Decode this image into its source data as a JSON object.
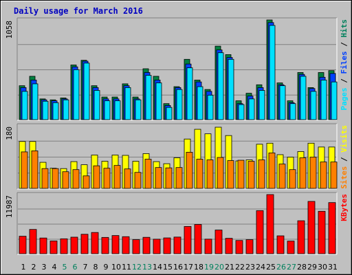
{
  "title": "Daily usage for March 2016",
  "colors": {
    "background": "#c0c0c0",
    "panel": "#c0c0c0",
    "hits": "#008040",
    "files": "#0040ff",
    "pages": "#00e0ff",
    "visits": "#ffff00",
    "sites": "#ff8000",
    "kbytes": "#ff0000",
    "weekday_label": "#000000",
    "weekend_label": "#00805c"
  },
  "chart_data": [
    {
      "type": "bar",
      "panel": "top",
      "ymax_label": "1058",
      "ylim": [
        0,
        1058
      ],
      "right_label": [
        "Pages",
        "Files",
        "Hits"
      ],
      "categories": [
        "1",
        "2",
        "3",
        "4",
        "5",
        "6",
        "7",
        "8",
        "9",
        "10",
        "11",
        "12",
        "13",
        "14",
        "15",
        "16",
        "17",
        "18",
        "19",
        "20",
        "21",
        "22",
        "23",
        "24",
        "25",
        "26",
        "27",
        "28",
        "29",
        "30",
        "31"
      ],
      "weekend": [
        "5",
        "6",
        "12",
        "13",
        "19",
        "20",
        "26",
        "27"
      ],
      "series": [
        {
          "name": "Hits",
          "values": [
            360,
            460,
            220,
            210,
            230,
            580,
            630,
            360,
            240,
            240,
            380,
            240,
            540,
            460,
            170,
            350,
            640,
            420,
            320,
            780,
            690,
            200,
            280,
            370,
            1058,
            390,
            200,
            500,
            340,
            500,
            520
          ]
        },
        {
          "name": "Files",
          "values": [
            340,
            420,
            210,
            200,
            220,
            560,
            620,
            340,
            220,
            220,
            360,
            220,
            500,
            420,
            150,
            340,
            590,
            400,
            300,
            740,
            660,
            170,
            250,
            340,
            1030,
            370,
            180,
            480,
            330,
            450,
            490
          ]
        },
        {
          "name": "Pages",
          "values": [
            300,
            380,
            195,
            180,
            210,
            530,
            600,
            310,
            200,
            200,
            340,
            210,
            470,
            390,
            130,
            320,
            550,
            350,
            260,
            710,
            640,
            160,
            220,
            310,
            1000,
            360,
            170,
            460,
            300,
            420,
            400
          ]
        }
      ]
    },
    {
      "type": "bar",
      "panel": "middle",
      "ymax_label": "180",
      "ylim": [
        0,
        180
      ],
      "right_label": [
        "Sites",
        "Visits"
      ],
      "categories": [
        "1",
        "2",
        "3",
        "4",
        "5",
        "6",
        "7",
        "8",
        "9",
        "10",
        "11",
        "12",
        "13",
        "14",
        "15",
        "16",
        "17",
        "18",
        "19",
        "20",
        "21",
        "22",
        "23",
        "24",
        "25",
        "26",
        "27",
        "28",
        "29",
        "30",
        "31"
      ],
      "series": [
        {
          "name": "Visits",
          "values": [
            135,
            135,
            75,
            58,
            57,
            77,
            68,
            96,
            78,
            96,
            95,
            78,
            100,
            77,
            71,
            88,
            142,
            170,
            157,
            176,
            152,
            79,
            82,
            127,
            130,
            97,
            90,
            106,
            130,
            119,
            119
          ]
        },
        {
          "name": "Sites",
          "values": [
            105,
            108,
            57,
            57,
            48,
            54,
            36,
            65,
            58,
            66,
            56,
            46,
            84,
            60,
            59,
            60,
            104,
            84,
            82,
            89,
            80,
            81,
            78,
            82,
            102,
            70,
            54,
            88,
            90,
            76,
            76
          ]
        }
      ]
    },
    {
      "type": "bar",
      "panel": "bottom",
      "ymax_label": "11987",
      "ylim": [
        0,
        11987
      ],
      "right_label": [
        "KBytes"
      ],
      "categories": [
        "1",
        "2",
        "3",
        "4",
        "5",
        "6",
        "7",
        "8",
        "9",
        "10",
        "11",
        "12",
        "13",
        "14",
        "15",
        "16",
        "17",
        "18",
        "19",
        "20",
        "21",
        "22",
        "23",
        "24",
        "25",
        "26",
        "27",
        "28",
        "29",
        "30",
        "31"
      ],
      "series": [
        {
          "name": "KBytes",
          "values": [
            3540,
            4920,
            3180,
            2580,
            3020,
            3350,
            3940,
            4300,
            3300,
            3680,
            3450,
            2850,
            3320,
            2940,
            3200,
            3370,
            5520,
            5930,
            2950,
            4800,
            3120,
            2680,
            2840,
            8730,
            11987,
            3620,
            2560,
            6680,
            10600,
            8600,
            10360
          ]
        }
      ]
    }
  ]
}
